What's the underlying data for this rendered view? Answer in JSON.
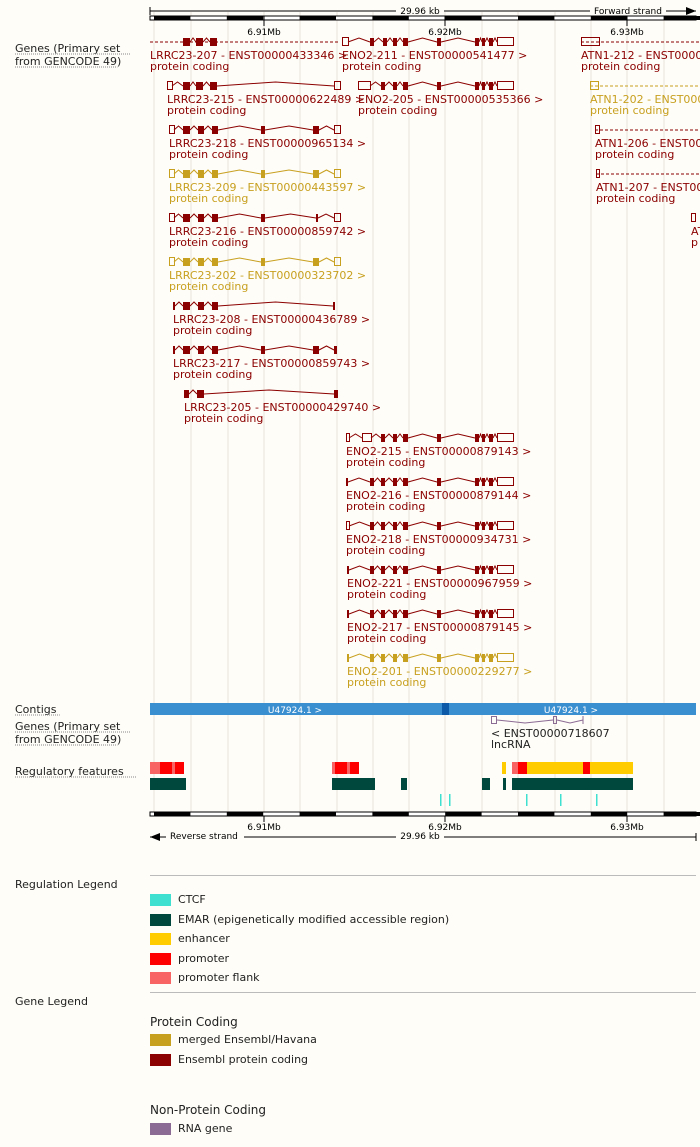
{
  "colors": {
    "ensembl": "#8b0000",
    "merged": "#c8a020",
    "ctcf": "#40e0d0",
    "emar": "#00483d",
    "enhancer": "#ffcc00",
    "promoter": "#ff0000",
    "promoter_flank": "#f86464",
    "rna": "#8b6a94",
    "contig": "#3a8fd0",
    "contig_dark": "#0d5aa8"
  },
  "ruler": {
    "span_label": "29.96 kb",
    "forward_strand": "Forward strand",
    "reverse_strand": "Reverse strand",
    "ticks": [
      "6.91Mb",
      "6.92Mb",
      "6.93Mb"
    ]
  },
  "tracks": {
    "genes_forward": "Genes (Primary set from GENCODE 49)",
    "contigs": "Contigs",
    "genes_reverse": "Genes (Primary set from GENCODE 49)",
    "regulatory": "Regulatory features"
  },
  "contigs": [
    {
      "label": "U47924.1 >"
    },
    {
      "label": "U47924.1 >"
    }
  ],
  "transcripts": [
    {
      "id": "LRRC23-207",
      "label": "LRRC23-207 - ENST00000433346 >",
      "biotype": "protein coding",
      "source": "ensembl"
    },
    {
      "id": "ENO2-211",
      "label": "ENO2-211 - ENST00000541477 >",
      "biotype": "protein coding",
      "source": "ensembl"
    },
    {
      "id": "ATN1-212",
      "label": "ATN1-212 - ENST0000",
      "biotype": "protein coding",
      "source": "ensembl"
    },
    {
      "id": "LRRC23-215",
      "label": "LRRC23-215 - ENST00000622489 >",
      "biotype": "protein coding",
      "source": "ensembl"
    },
    {
      "id": "ENO2-205",
      "label": "ENO2-205 - ENST00000535366 >",
      "biotype": "protein coding",
      "source": "ensembl"
    },
    {
      "id": "ATN1-202",
      "label": "ATN1-202 - ENST000",
      "biotype": "protein coding",
      "source": "merged"
    },
    {
      "id": "LRRC23-218",
      "label": "LRRC23-218 - ENST00000965134 >",
      "biotype": "protein coding",
      "source": "ensembl"
    },
    {
      "id": "ATN1-206",
      "label": "ATN1-206 - ENST00",
      "biotype": "protein coding",
      "source": "ensembl"
    },
    {
      "id": "LRRC23-209",
      "label": "LRRC23-209 - ENST00000443597 >",
      "biotype": "protein coding",
      "source": "merged"
    },
    {
      "id": "ATN1-207",
      "label": "ATN1-207 - ENST00",
      "biotype": "protein coding",
      "source": "ensembl"
    },
    {
      "id": "LRRC23-216",
      "label": "LRRC23-216 - ENST00000859742 >",
      "biotype": "protein coding",
      "source": "ensembl"
    },
    {
      "id": "ATN1-edge",
      "label": "AT",
      "biotype": "p",
      "source": "ensembl"
    },
    {
      "id": "LRRC23-202",
      "label": "LRRC23-202 - ENST00000323702 >",
      "biotype": "protein coding",
      "source": "merged"
    },
    {
      "id": "LRRC23-208",
      "label": "LRRC23-208 - ENST00000436789 >",
      "biotype": "protein coding",
      "source": "ensembl"
    },
    {
      "id": "LRRC23-217",
      "label": "LRRC23-217 - ENST00000859743 >",
      "biotype": "protein coding",
      "source": "ensembl"
    },
    {
      "id": "LRRC23-205",
      "label": "LRRC23-205 - ENST00000429740 >",
      "biotype": "protein coding",
      "source": "ensembl"
    },
    {
      "id": "ENO2-215",
      "label": "ENO2-215 - ENST00000879143 >",
      "biotype": "protein coding",
      "source": "ensembl"
    },
    {
      "id": "ENO2-216",
      "label": "ENO2-216 - ENST00000879144 >",
      "biotype": "protein coding",
      "source": "ensembl"
    },
    {
      "id": "ENO2-218",
      "label": "ENO2-218 - ENST00000934731 >",
      "biotype": "protein coding",
      "source": "ensembl"
    },
    {
      "id": "ENO2-221",
      "label": "ENO2-221 - ENST00000967959 >",
      "biotype": "protein coding",
      "source": "ensembl"
    },
    {
      "id": "ENO2-217",
      "label": "ENO2-217 - ENST00000879145 >",
      "biotype": "protein coding",
      "source": "ensembl"
    },
    {
      "id": "ENO2-201",
      "label": "ENO2-201 - ENST00000229277 >",
      "biotype": "protein coding",
      "source": "merged"
    }
  ],
  "reverse_transcript": {
    "label": "< ENST00000718607",
    "biotype": "lncRNA"
  },
  "regulation_legend": {
    "title": "Regulation Legend",
    "items": [
      {
        "key": "ctcf",
        "label": "CTCF"
      },
      {
        "key": "emar",
        "label": "EMAR (epigenetically modified accessible region)"
      },
      {
        "key": "enhancer",
        "label": "enhancer"
      },
      {
        "key": "promoter",
        "label": "promoter"
      },
      {
        "key": "promoter_flank",
        "label": "promoter flank"
      }
    ]
  },
  "gene_legend": {
    "title": "Gene Legend",
    "protein_coding": {
      "title": "Protein Coding",
      "items": [
        {
          "key": "merged",
          "label": "merged Ensembl/Havana"
        },
        {
          "key": "ensembl",
          "label": "Ensembl protein coding"
        }
      ]
    },
    "non_protein_coding": {
      "title": "Non-Protein Coding",
      "items": [
        {
          "key": "rna",
          "label": "RNA gene"
        }
      ]
    }
  }
}
